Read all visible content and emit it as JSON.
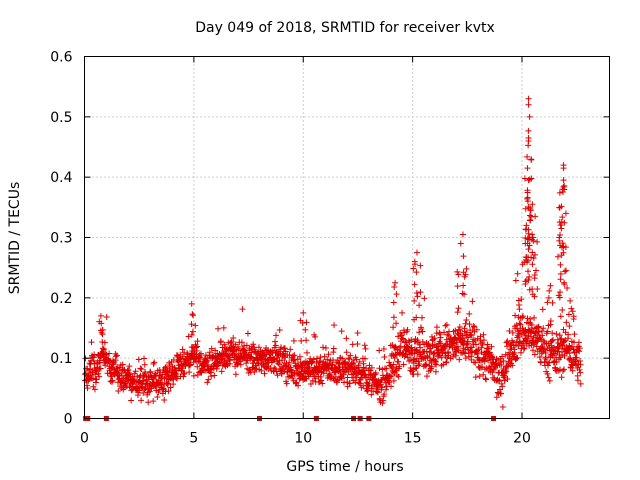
{
  "chart_data": {
    "type": "scatter",
    "title": "Day 049 of 2018, SRMTID for receiver kvtx",
    "xlabel": "GPS time / hours",
    "ylabel": "SRMTID / TECUs",
    "xlim": [
      0,
      24
    ],
    "ylim": [
      0,
      0.6
    ],
    "xticks": [
      0,
      5,
      10,
      15,
      20
    ],
    "xtick_labels": [
      "0",
      "5",
      "10",
      "15",
      "20"
    ],
    "yticks": [
      0,
      0.1,
      0.2,
      0.3,
      0.4,
      0.5,
      0.6
    ],
    "ytick_labels": [
      "0",
      "0.1",
      "0.2",
      "0.3",
      "0.4",
      "0.5",
      "0.6"
    ],
    "grid": true,
    "marker": "+",
    "color": "#e00000",
    "trend": [
      [
        0.0,
        0.075
      ],
      [
        0.5,
        0.08
      ],
      [
        0.8,
        0.11
      ],
      [
        1.2,
        0.085
      ],
      [
        1.6,
        0.07
      ],
      [
        2.0,
        0.065
      ],
      [
        2.5,
        0.055
      ],
      [
        3.0,
        0.06
      ],
      [
        3.5,
        0.065
      ],
      [
        4.0,
        0.075
      ],
      [
        4.5,
        0.09
      ],
      [
        5.0,
        0.1
      ],
      [
        5.5,
        0.09
      ],
      [
        6.0,
        0.095
      ],
      [
        6.5,
        0.11
      ],
      [
        7.0,
        0.105
      ],
      [
        7.5,
        0.1
      ],
      [
        8.0,
        0.095
      ],
      [
        8.5,
        0.105
      ],
      [
        9.0,
        0.09
      ],
      [
        9.5,
        0.085
      ],
      [
        10.0,
        0.08
      ],
      [
        10.5,
        0.08
      ],
      [
        11.0,
        0.085
      ],
      [
        11.5,
        0.08
      ],
      [
        12.0,
        0.085
      ],
      [
        12.5,
        0.08
      ],
      [
        13.0,
        0.065
      ],
      [
        13.5,
        0.05
      ],
      [
        14.0,
        0.08
      ],
      [
        14.5,
        0.12
      ],
      [
        15.0,
        0.11
      ],
      [
        15.5,
        0.115
      ],
      [
        16.0,
        0.105
      ],
      [
        16.5,
        0.12
      ],
      [
        17.0,
        0.12
      ],
      [
        17.5,
        0.13
      ],
      [
        18.0,
        0.11
      ],
      [
        18.5,
        0.095
      ],
      [
        19.0,
        0.06
      ],
      [
        19.5,
        0.12
      ],
      [
        20.0,
        0.14
      ],
      [
        20.5,
        0.14
      ],
      [
        21.0,
        0.115
      ],
      [
        21.5,
        0.1
      ],
      [
        22.0,
        0.12
      ],
      [
        22.5,
        0.1
      ],
      [
        22.7,
        0.09
      ]
    ],
    "peaks": [
      {
        "x": 0.75,
        "y": 0.17
      },
      {
        "x": 4.9,
        "y": 0.19
      },
      {
        "x": 10.0,
        "y": 0.175
      },
      {
        "x": 14.2,
        "y": 0.225
      },
      {
        "x": 15.2,
        "y": 0.275
      },
      {
        "x": 15.1,
        "y": 0.26
      },
      {
        "x": 17.3,
        "y": 0.305
      },
      {
        "x": 17.2,
        "y": 0.29
      },
      {
        "x": 19.8,
        "y": 0.24
      },
      {
        "x": 20.3,
        "y": 0.53
      },
      {
        "x": 20.3,
        "y": 0.52
      },
      {
        "x": 20.35,
        "y": 0.5
      },
      {
        "x": 20.3,
        "y": 0.465
      },
      {
        "x": 20.3,
        "y": 0.46
      },
      {
        "x": 20.25,
        "y": 0.415
      },
      {
        "x": 20.3,
        "y": 0.395
      },
      {
        "x": 20.4,
        "y": 0.345
      },
      {
        "x": 20.2,
        "y": 0.32
      },
      {
        "x": 20.6,
        "y": 0.335
      },
      {
        "x": 20.5,
        "y": 0.3
      },
      {
        "x": 21.9,
        "y": 0.42
      },
      {
        "x": 21.9,
        "y": 0.415
      },
      {
        "x": 21.9,
        "y": 0.395
      },
      {
        "x": 21.85,
        "y": 0.38
      },
      {
        "x": 21.8,
        "y": 0.315
      },
      {
        "x": 21.9,
        "y": 0.285
      },
      {
        "x": 21.3,
        "y": 0.22
      },
      {
        "x": 22.2,
        "y": 0.195
      }
    ],
    "zero_points": [
      0.05,
      0.15,
      1.0,
      8.0,
      10.6,
      12.3,
      12.6,
      13.0,
      18.7
    ]
  }
}
